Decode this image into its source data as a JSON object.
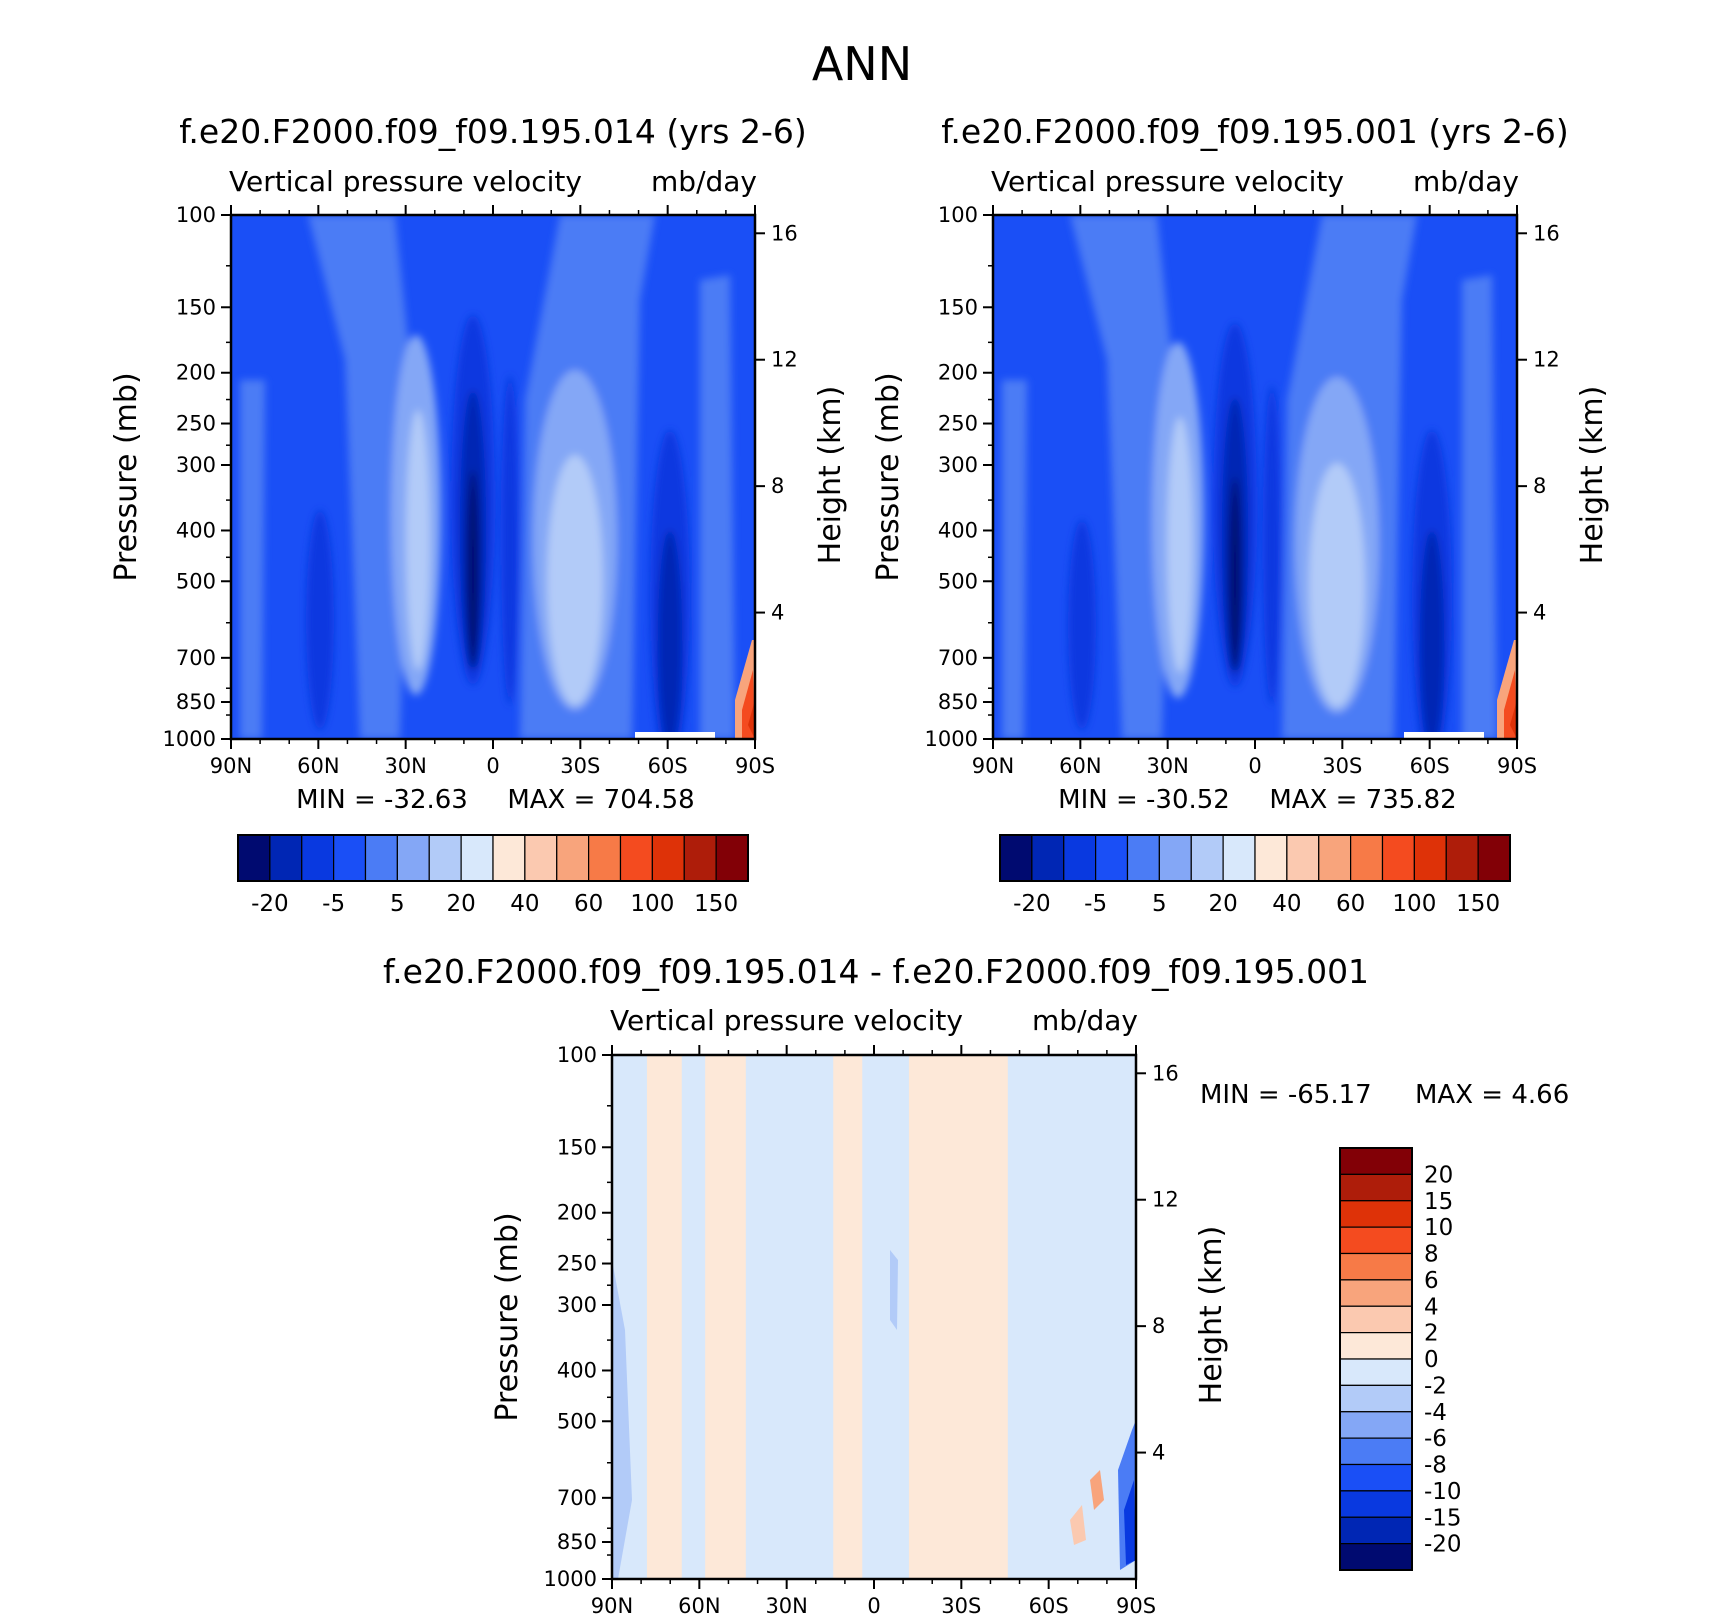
{
  "figure_title": "ANN",
  "colors": {
    "frame": "#000000",
    "background": "#ffffff",
    "abs_scale": [
      "#000a70",
      "#0026b4",
      "#0939e0",
      "#1a4ff6",
      "#4b7cf5",
      "#84a7f6",
      "#b2cbf8",
      "#d8e8fb",
      "#fde8d8",
      "#fbc9b0",
      "#f8a47c",
      "#f77a47",
      "#f44b1f",
      "#de3208",
      "#ae1d0a",
      "#820006"
    ],
    "diff_scale": [
      "#000a70",
      "#0026b4",
      "#0939e0",
      "#1a4ff6",
      "#4b7cf5",
      "#84a7f6",
      "#b2cbf8",
      "#d8e8fb",
      "#fde8d8",
      "#fbc9b0",
      "#f8a47c",
      "#f77a47",
      "#f44b1f",
      "#de3208",
      "#ae1d0a",
      "#820006"
    ]
  },
  "panels": [
    {
      "id": "case",
      "title": "f.e20.F2000.f09_f09.195.014 (yrs 2-6)",
      "subtitle_left": "Vertical pressure velocity",
      "subtitle_right": "mb/day",
      "min_label": "MIN = -32.63",
      "max_label": "MAX = 704.58"
    },
    {
      "id": "control",
      "title": "f.e20.F2000.f09_f09.195.001 (yrs 2-6)",
      "subtitle_left": "Vertical pressure velocity",
      "subtitle_right": "mb/day",
      "min_label": "MIN = -30.52",
      "max_label": "MAX = 735.82"
    },
    {
      "id": "difference",
      "title": "f.e20.F2000.f09_f09.195.014 - f.e20.F2000.f09_f09.195.001",
      "subtitle_left": "Vertical pressure velocity",
      "subtitle_right": "mb/day",
      "min_label": "MIN = -65.17",
      "max_label": "MAX =    4.66"
    }
  ],
  "chart_data": [
    {
      "type": "heatmap",
      "title": "f.e20.F2000.f09_f09.195.014 (yrs 2-6)",
      "variable": "Vertical pressure velocity",
      "units": "mb/day",
      "xlabel": "",
      "ylabel": "Pressure (mb)",
      "y2label": "Height (km)",
      "x_ticks": [
        "90N",
        "60N",
        "30N",
        "0",
        "30S",
        "60S",
        "90S"
      ],
      "x_tick_values": [
        90,
        60,
        30,
        0,
        -30,
        -60,
        -90
      ],
      "y_ticks": [
        100,
        150,
        200,
        250,
        300,
        400,
        500,
        700,
        850,
        1000
      ],
      "y_scale": "log",
      "y_inverted": true,
      "y2_ticks": [
        16,
        12,
        8,
        4
      ],
      "contour_levels": [
        -20,
        -15,
        -10,
        -5,
        0,
        5,
        10,
        20,
        30,
        40,
        50,
        60,
        80,
        100,
        150
      ],
      "colorbar_labels": [
        "-20",
        "-5",
        "5",
        "20",
        "40",
        "60",
        "100",
        "150"
      ],
      "min": -32.63,
      "max": 704.58,
      "features": [
        {
          "lat": 5,
          "p_top": 200,
          "p_bottom": 1000,
          "value": -20
        },
        {
          "lat": -23,
          "p_top": 200,
          "p_bottom": 900,
          "value": 20
        },
        {
          "lat": 28,
          "p_top": 200,
          "p_bottom": 900,
          "value": 20
        },
        {
          "lat": -65,
          "p_top": 250,
          "p_bottom": 1000,
          "value": -15
        },
        {
          "lat": -87,
          "p_top": 700,
          "p_bottom": 1000,
          "value": 150
        }
      ]
    },
    {
      "type": "heatmap",
      "title": "f.e20.F2000.f09_f09.195.001 (yrs 2-6)",
      "variable": "Vertical pressure velocity",
      "units": "mb/day",
      "xlabel": "",
      "ylabel": "Pressure (mb)",
      "y2label": "Height (km)",
      "x_ticks": [
        "90N",
        "60N",
        "30N",
        "0",
        "30S",
        "60S",
        "90S"
      ],
      "x_tick_values": [
        90,
        60,
        30,
        0,
        -30,
        -60,
        -90
      ],
      "y_ticks": [
        100,
        150,
        200,
        250,
        300,
        400,
        500,
        700,
        850,
        1000
      ],
      "y_scale": "log",
      "y_inverted": true,
      "y2_ticks": [
        16,
        12,
        8,
        4
      ],
      "contour_levels": [
        -20,
        -15,
        -10,
        -5,
        0,
        5,
        10,
        20,
        30,
        40,
        50,
        60,
        80,
        100,
        150
      ],
      "colorbar_labels": [
        "-20",
        "-5",
        "5",
        "20",
        "40",
        "60",
        "100",
        "150"
      ],
      "min": -30.52,
      "max": 735.82,
      "features": [
        {
          "lat": 5,
          "p_top": 200,
          "p_bottom": 1000,
          "value": -20
        },
        {
          "lat": -23,
          "p_top": 200,
          "p_bottom": 900,
          "value": 20
        },
        {
          "lat": 27,
          "p_top": 200,
          "p_bottom": 900,
          "value": 20
        },
        {
          "lat": -65,
          "p_top": 250,
          "p_bottom": 1000,
          "value": -15
        },
        {
          "lat": -87,
          "p_top": 700,
          "p_bottom": 1000,
          "value": 150
        }
      ]
    },
    {
      "type": "heatmap",
      "title": "f.e20.F2000.f09_f09.195.014 - f.e20.F2000.f09_f09.195.001",
      "variable": "Vertical pressure velocity",
      "units": "mb/day",
      "xlabel": "",
      "ylabel": "Pressure (mb)",
      "y2label": "Height (km)",
      "x_ticks": [
        "90N",
        "60N",
        "30N",
        "0",
        "30S",
        "60S",
        "90S"
      ],
      "x_tick_values": [
        90,
        60,
        30,
        0,
        -30,
        -60,
        -90
      ],
      "y_ticks": [
        100,
        150,
        200,
        250,
        300,
        400,
        500,
        700,
        850,
        1000
      ],
      "y_scale": "log",
      "y_inverted": true,
      "y2_ticks": [
        16,
        12,
        8,
        4
      ],
      "contour_levels": [
        -20,
        -15,
        -10,
        -8,
        -6,
        -4,
        -2,
        0,
        2,
        4,
        6,
        8,
        10,
        15,
        20
      ],
      "colorbar_labels": [
        "20",
        "15",
        "10",
        "8",
        "6",
        "4",
        "2",
        "0",
        "-2",
        "-4",
        "-6",
        "-8",
        "-10",
        "-15",
        "-20"
      ],
      "min": -65.17,
      "max": 4.66,
      "bands": [
        {
          "lat_from": 90,
          "lat_to": 78,
          "value": -1
        },
        {
          "lat_from": 78,
          "lat_to": 66,
          "value": 1
        },
        {
          "lat_from": 66,
          "lat_to": 58,
          "value": -1
        },
        {
          "lat_from": 58,
          "lat_to": 44,
          "value": 1
        },
        {
          "lat_from": 44,
          "lat_to": 14,
          "value": -1
        },
        {
          "lat_from": 14,
          "lat_to": 4,
          "value": 1
        },
        {
          "lat_from": 4,
          "lat_to": -12,
          "value": -1
        },
        {
          "lat_from": -12,
          "lat_to": -46,
          "value": 1
        },
        {
          "lat_from": -46,
          "lat_to": -90,
          "value": -1
        }
      ]
    }
  ]
}
